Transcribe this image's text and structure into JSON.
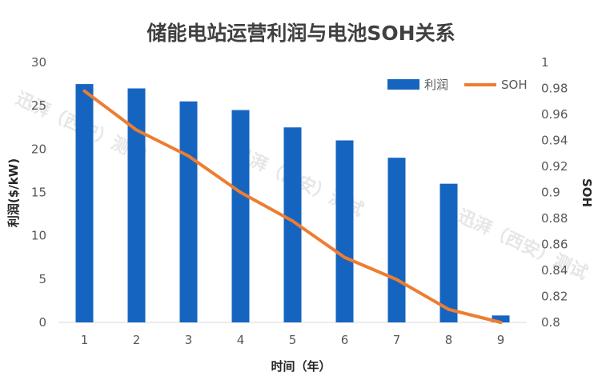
{
  "chart_data": {
    "type": "bar+line",
    "title": "储能电站运营利润与电池SOH关系",
    "xlabel": "时间（年）",
    "ylabel_left": "利润($/kW)",
    "ylabel_right": "SOH",
    "categories": [
      "1",
      "2",
      "3",
      "4",
      "5",
      "6",
      "7",
      "8",
      "9"
    ],
    "ylim_left": [
      0,
      30
    ],
    "yticks_left": [
      "0",
      "5",
      "10",
      "15",
      "20",
      "25",
      "30"
    ],
    "ylim_right": [
      0.8,
      1.0
    ],
    "yticks_right": [
      "0.8",
      "0.82",
      "0.84",
      "0.86",
      "0.88",
      "0.9",
      "0.92",
      "0.94",
      "0.96",
      "0.98",
      "1"
    ],
    "series": [
      {
        "name": "利润",
        "type": "bar",
        "axis": "left",
        "color": "#1565C0",
        "values": [
          27.5,
          27.0,
          25.5,
          24.5,
          22.5,
          21.0,
          19.0,
          16.0,
          0.8
        ]
      },
      {
        "name": "SOH",
        "type": "line",
        "axis": "right",
        "color": "#ED7D31",
        "values": [
          0.978,
          0.948,
          0.928,
          0.9,
          0.878,
          0.85,
          0.833,
          0.81,
          0.8
        ]
      }
    ],
    "legend_position": "top-right",
    "grid": false,
    "watermark": "迅湃（西安）测试"
  }
}
